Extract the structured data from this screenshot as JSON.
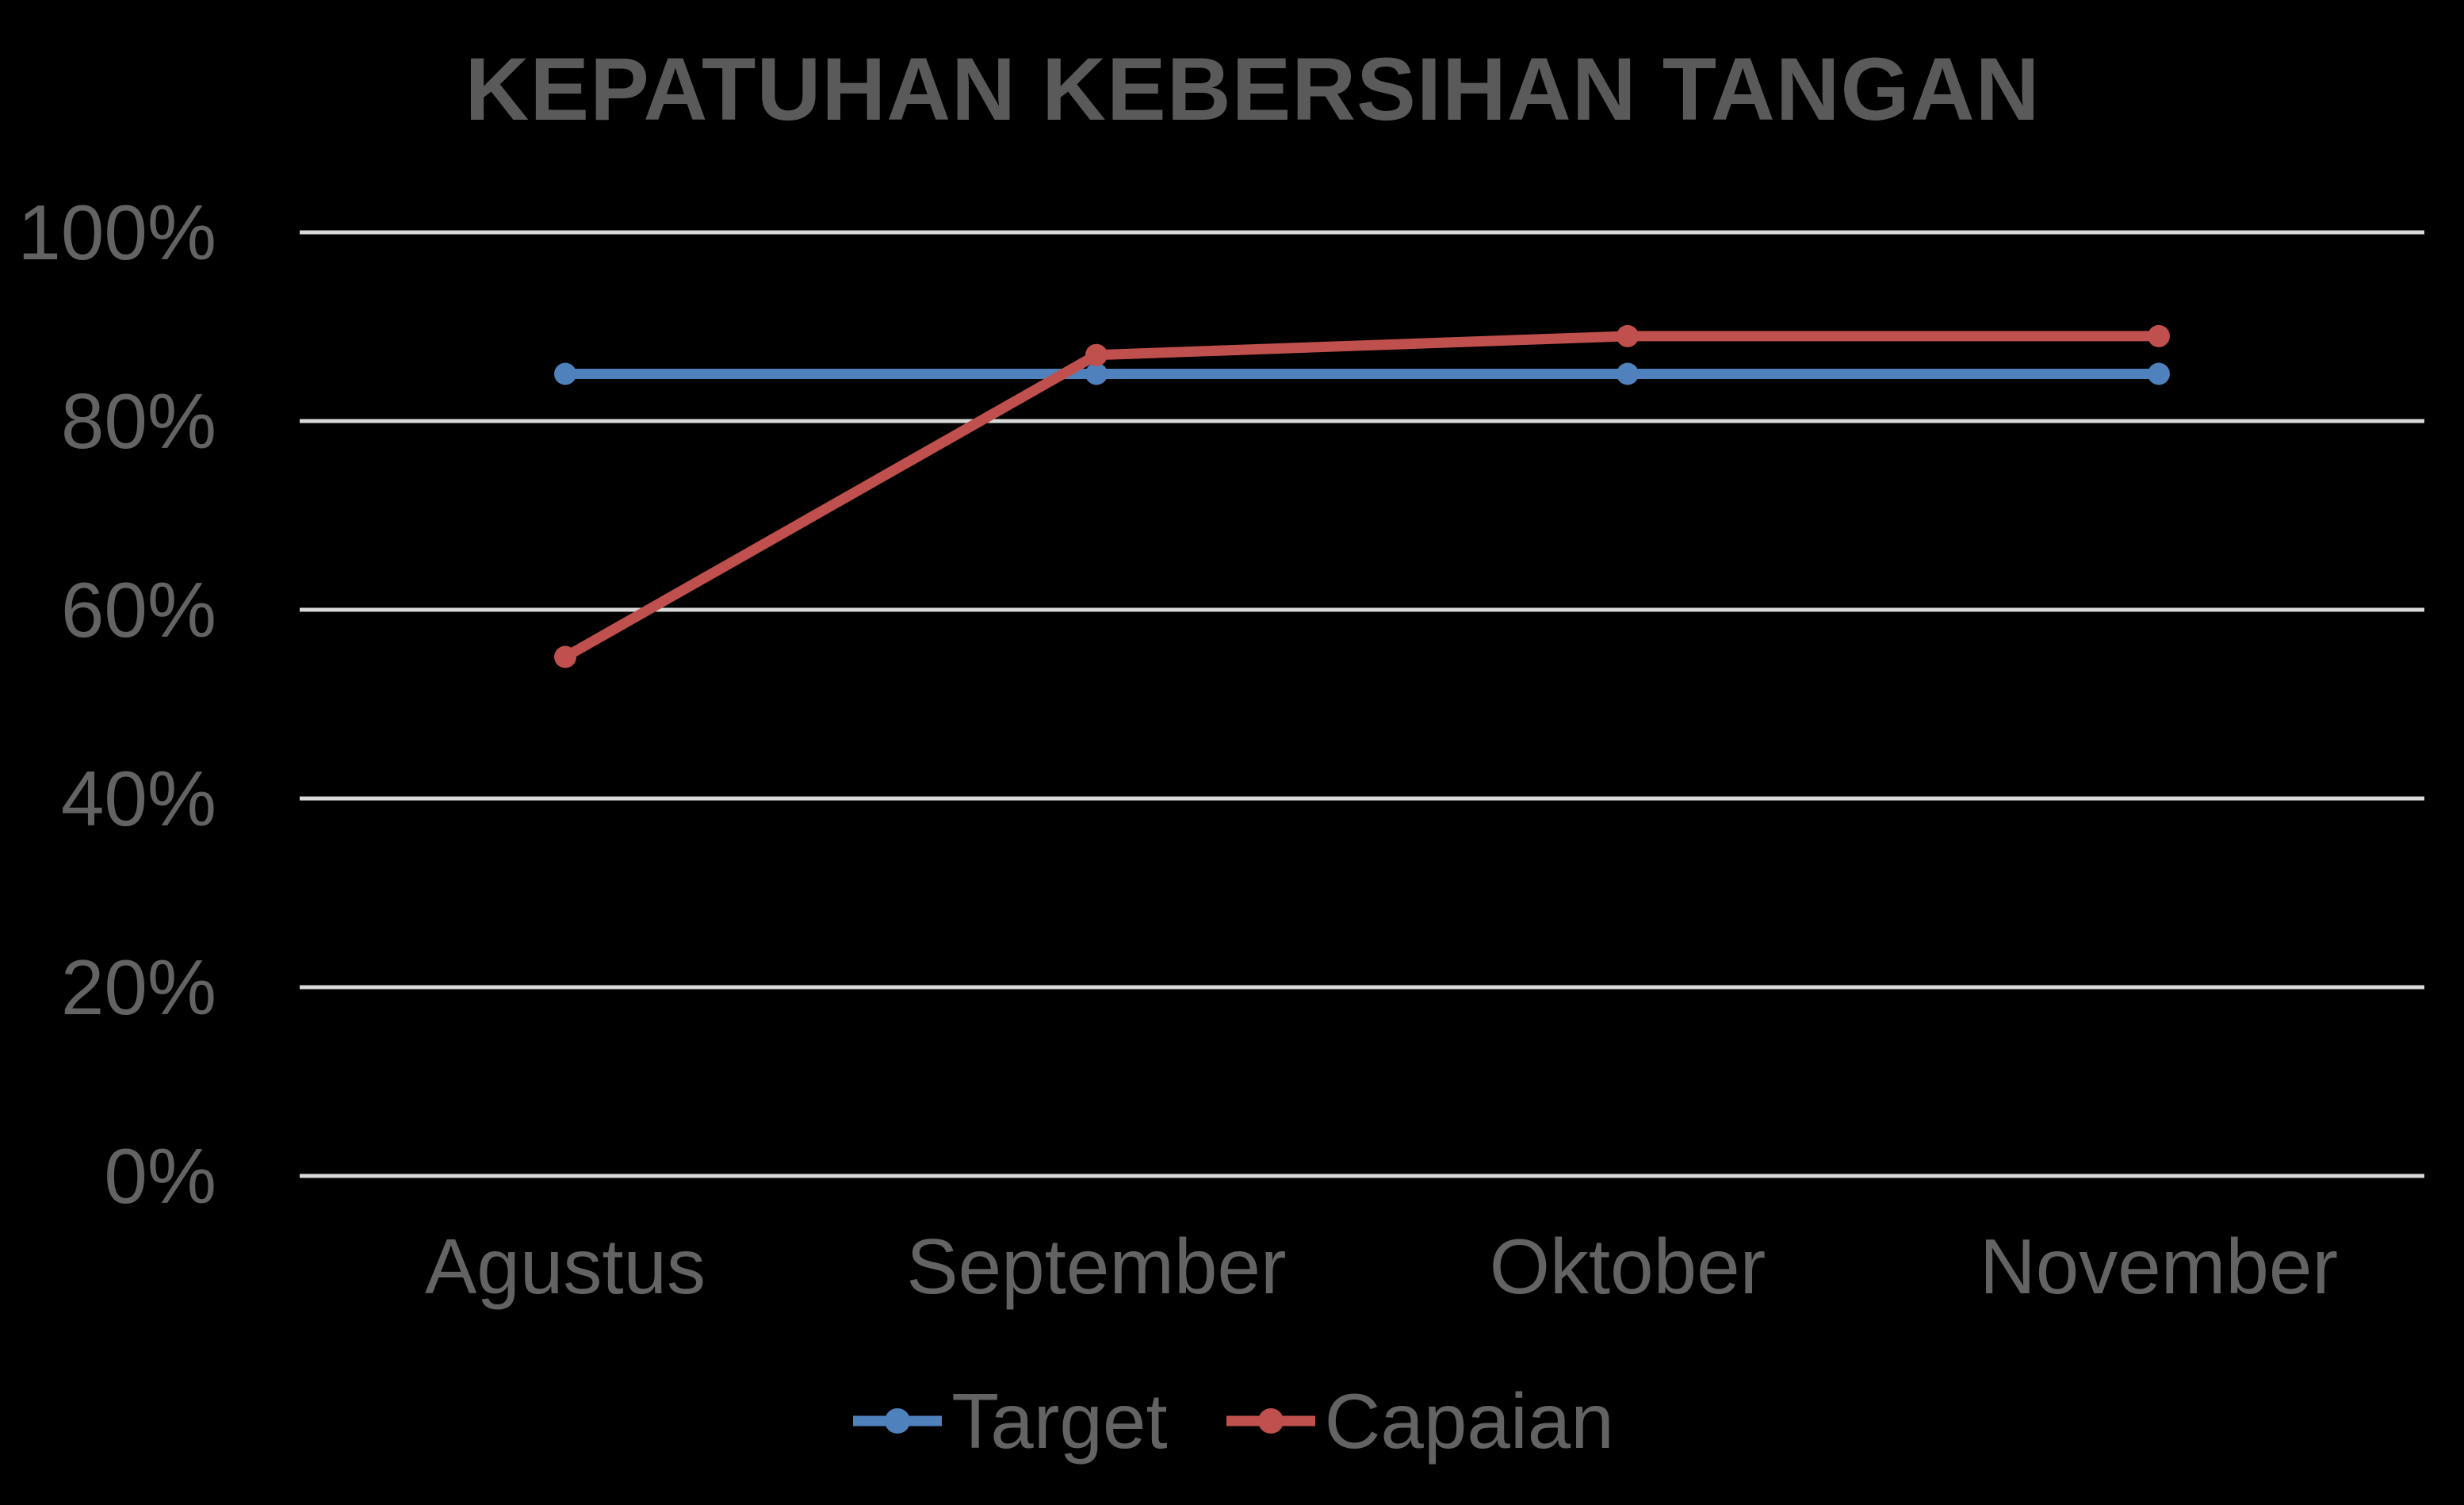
{
  "chart_data": {
    "type": "line",
    "title": "KEPATUHAN KEBERSIHAN TANGAN",
    "categories": [
      "Agustus",
      "September",
      "Oktober",
      "November"
    ],
    "series": [
      {
        "name": "Target",
        "values": [
          85,
          85,
          85,
          85
        ],
        "color": "#4F81BD"
      },
      {
        "name": "Capaian",
        "values": [
          55,
          87,
          89,
          89
        ],
        "color": "#C0504D"
      }
    ],
    "ylim": [
      0,
      100
    ],
    "ytick_values": [
      100,
      80,
      60,
      40,
      20,
      0
    ],
    "ytick_labels": [
      "100%",
      "80%",
      "60%",
      "40%",
      "20%",
      "0%"
    ],
    "xlabel": "",
    "ylabel": "",
    "grid": true,
    "legend_position": "bottom"
  },
  "colors": {
    "background": "#000000",
    "title_text": "#5A5A5A",
    "axis_text": "#636363",
    "gridline": "#D9D9D9"
  }
}
